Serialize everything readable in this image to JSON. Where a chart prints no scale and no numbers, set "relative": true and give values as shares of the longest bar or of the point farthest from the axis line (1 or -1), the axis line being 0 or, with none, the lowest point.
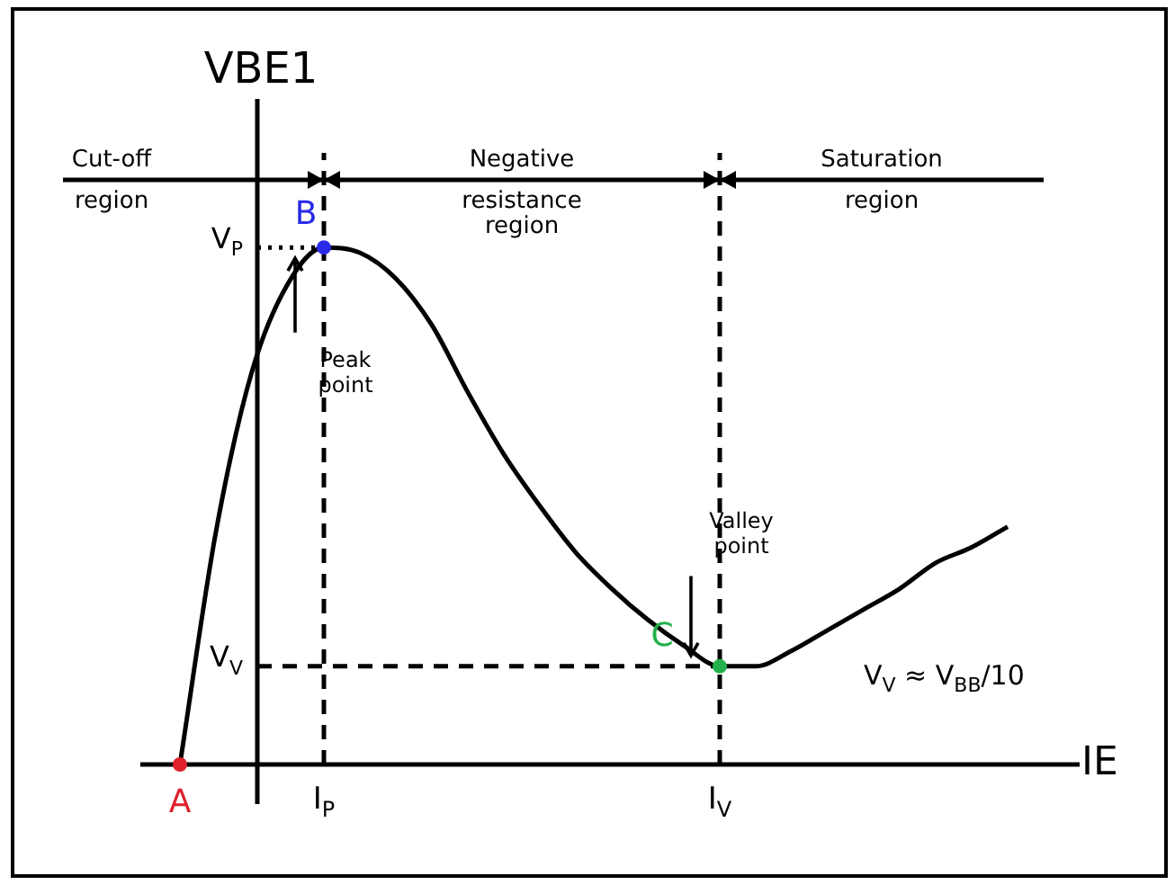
{
  "chart_data": {
    "type": "line",
    "relative": true,
    "xlabel": "IE",
    "ylabel": "VBE1",
    "marker": "none",
    "categories": [
      null,
      null,
      null,
      null,
      "I$_{P}$",
      null,
      null,
      null,
      null,
      null,
      null,
      null,
      null,
      null,
      null,
      "I$_{V}$",
      null,
      null,
      null,
      null,
      null,
      null,
      null,
      null
    ],
    "series": [
      {
        "color": "#000000",
        "values": [
          0,
          0.45,
          0.76,
          0.93,
          1,
          0.99,
          0.94,
          0.85,
          0.72,
          0.6,
          0.5,
          0.41,
          0.34,
          0.28,
          0.23,
          0.19,
          0.19,
          0.22,
          0.26,
          0.3,
          0.34,
          0.39,
          0.42,
          0.46
        ]
      }
    ],
    "ref_lines": [
      {
        "axis": "x",
        "value": "I$_{P}$",
        "line_style": "dashed"
      },
      {
        "axis": "x",
        "value": "I$_{V}$",
        "line_style": "dashed"
      },
      {
        "axis": "y",
        "value": 1,
        "label": "V$_{P}$",
        "line_style": "dotted"
      },
      {
        "axis": "y",
        "value": 0.19,
        "label": "V$_{V}$",
        "line_style": "dashed"
      }
    ],
    "annotations": [
      {
        "text": "A",
        "y": 0
      },
      {
        "text": "B",
        "x": "I$_{P}$",
        "y": 1
      },
      "Peak point",
      {
        "text": "C",
        "x": "I$_{V}$",
        "y": 0.19
      },
      "Valley point",
      "V$_{V}$ ≈ V$_{BB}$/10",
      "Cut-off region",
      "Negative resistance region",
      "Saturation region"
    ]
  }
}
